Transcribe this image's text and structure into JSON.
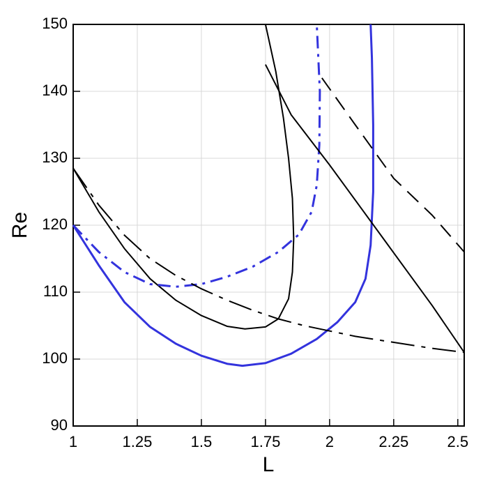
{
  "chart_data": {
    "type": "line",
    "x_label": "L",
    "y_label": "Re",
    "xlim": [
      1,
      2.525
    ],
    "ylim": [
      90,
      150
    ],
    "xticks": [
      1,
      1.25,
      1.5,
      1.75,
      2,
      2.25,
      2.5
    ],
    "yticks": [
      90,
      100,
      110,
      120,
      130,
      140,
      150
    ],
    "grid": true,
    "series": [
      {
        "color": "#000000",
        "dash": "solid",
        "x": [
          1,
          1.1,
          1.2,
          1.3,
          1.4,
          1.5,
          1.6,
          1.67,
          1.75,
          1.8,
          1.84,
          1.855,
          1.86,
          1.855,
          1.84,
          1.82,
          1.79,
          1.75
        ],
        "values": [
          128.5,
          122,
          116.5,
          112,
          108.8,
          106.5,
          104.9,
          104.5,
          104.8,
          106,
          109,
          113,
          118,
          124,
          130,
          136,
          143,
          150
        ]
      },
      {
        "color": "#3333dd",
        "dash": "solid",
        "x": [
          1,
          1.1,
          1.2,
          1.3,
          1.4,
          1.5,
          1.6,
          1.66,
          1.75,
          1.85,
          1.95,
          2.03,
          2.1,
          2.14,
          2.16,
          2.17,
          2.17,
          2.165,
          2.16
        ],
        "values": [
          120,
          114,
          108.5,
          104.8,
          102.3,
          100.5,
          99.3,
          99,
          99.4,
          100.8,
          103,
          105.5,
          108.5,
          112,
          117,
          125,
          135,
          145,
          150
        ]
      },
      {
        "color": "#3333dd",
        "dash": "dashdot",
        "x": [
          1,
          1.1,
          1.2,
          1.3,
          1.4,
          1.5,
          1.6,
          1.7,
          1.8,
          1.88,
          1.93,
          1.95,
          1.96,
          1.962,
          1.95
        ],
        "values": [
          120,
          116,
          113,
          111.2,
          110.8,
          111.2,
          112.3,
          113.8,
          116,
          118.6,
          122,
          126,
          132,
          140,
          150
        ]
      },
      {
        "color": "#000000",
        "dash": "longdashdot",
        "x": [
          1,
          1.1,
          1.2,
          1.3,
          1.4,
          1.5,
          1.6,
          1.7,
          1.8,
          1.9,
          2,
          2.1,
          2.2,
          2.3,
          2.4,
          2.525
        ],
        "values": [
          128.5,
          123,
          118.5,
          115,
          112.5,
          110.5,
          108.8,
          107.3,
          106,
          105,
          104.2,
          103.4,
          102.8,
          102.2,
          101.6,
          101
        ]
      },
      {
        "color": "#000000",
        "dash": "solid",
        "x": [
          1.75,
          1.85,
          2,
          2.2,
          2.4,
          2.525
        ],
        "values": [
          144,
          136.5,
          129,
          118.5,
          108,
          101
        ]
      },
      {
        "color": "#000000",
        "dash": "dash",
        "x": [
          1.97,
          2.1,
          2.25,
          2.4,
          2.525
        ],
        "values": [
          142,
          135,
          127,
          121.5,
          116
        ]
      }
    ]
  }
}
